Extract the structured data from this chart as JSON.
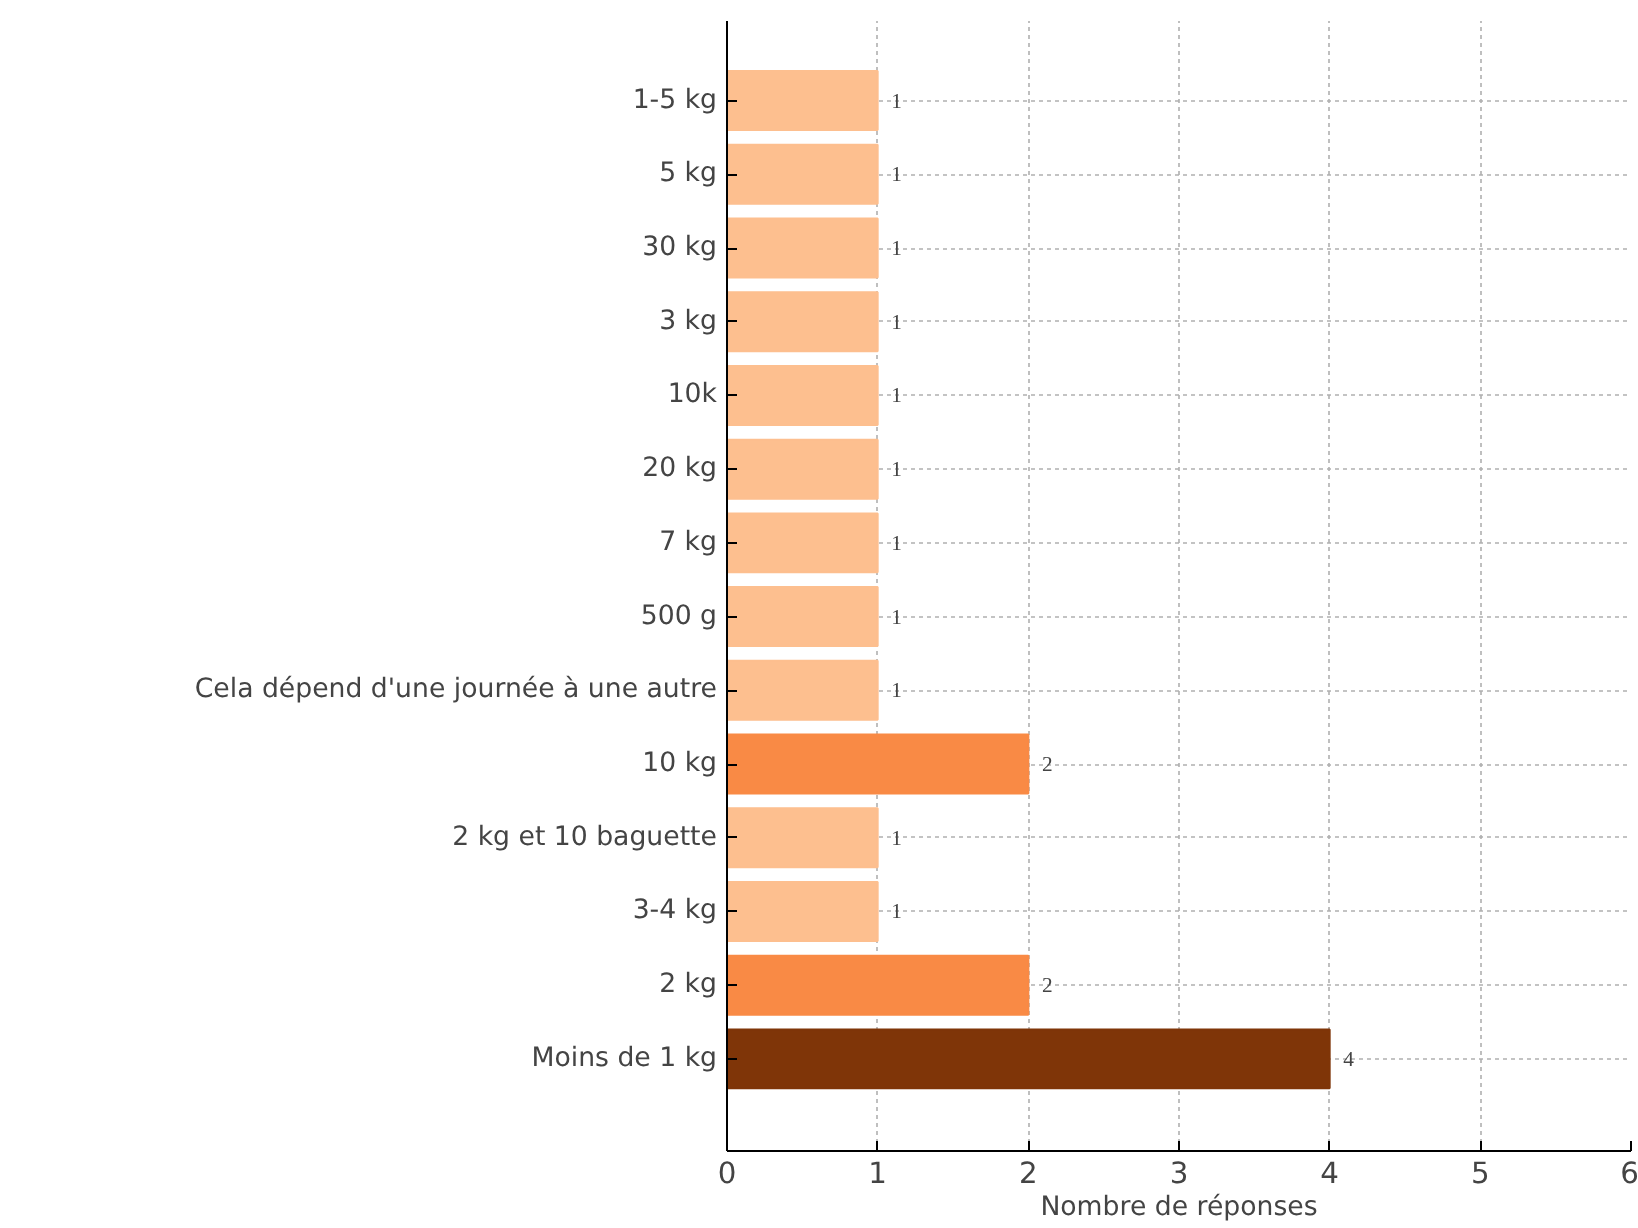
{
  "chart_data": {
    "type": "bar",
    "orientation": "horizontal",
    "xlabel": "Nombre de réponses",
    "categories": [
      "1-5 kg",
      "5 kg",
      "30 kg",
      "3 kg",
      "10k",
      "20 kg",
      "7 kg",
      "500 g",
      "Cela dépend d'une journée à une autre",
      "10 kg",
      "2 kg et 10 baguette",
      "3-4 kg",
      "2 kg",
      "Moins de 1 kg"
    ],
    "values": [
      1,
      1,
      1,
      1,
      1,
      1,
      1,
      1,
      1,
      2,
      1,
      1,
      2,
      4
    ],
    "colors": [
      "#fdbf8f",
      "#fdbf8f",
      "#fdbf8f",
      "#fdbf8f",
      "#fdbf8f",
      "#fdbf8f",
      "#fdbf8f",
      "#fdbf8f",
      "#fdbf8f",
      "#f98a45",
      "#fdbf8f",
      "#fdbf8f",
      "#f98a45",
      "#7f3508"
    ],
    "xlim": [
      0,
      6
    ],
    "xticks": [
      0,
      1,
      2,
      3,
      4,
      5,
      6
    ],
    "grid": true,
    "data_labels": true
  }
}
